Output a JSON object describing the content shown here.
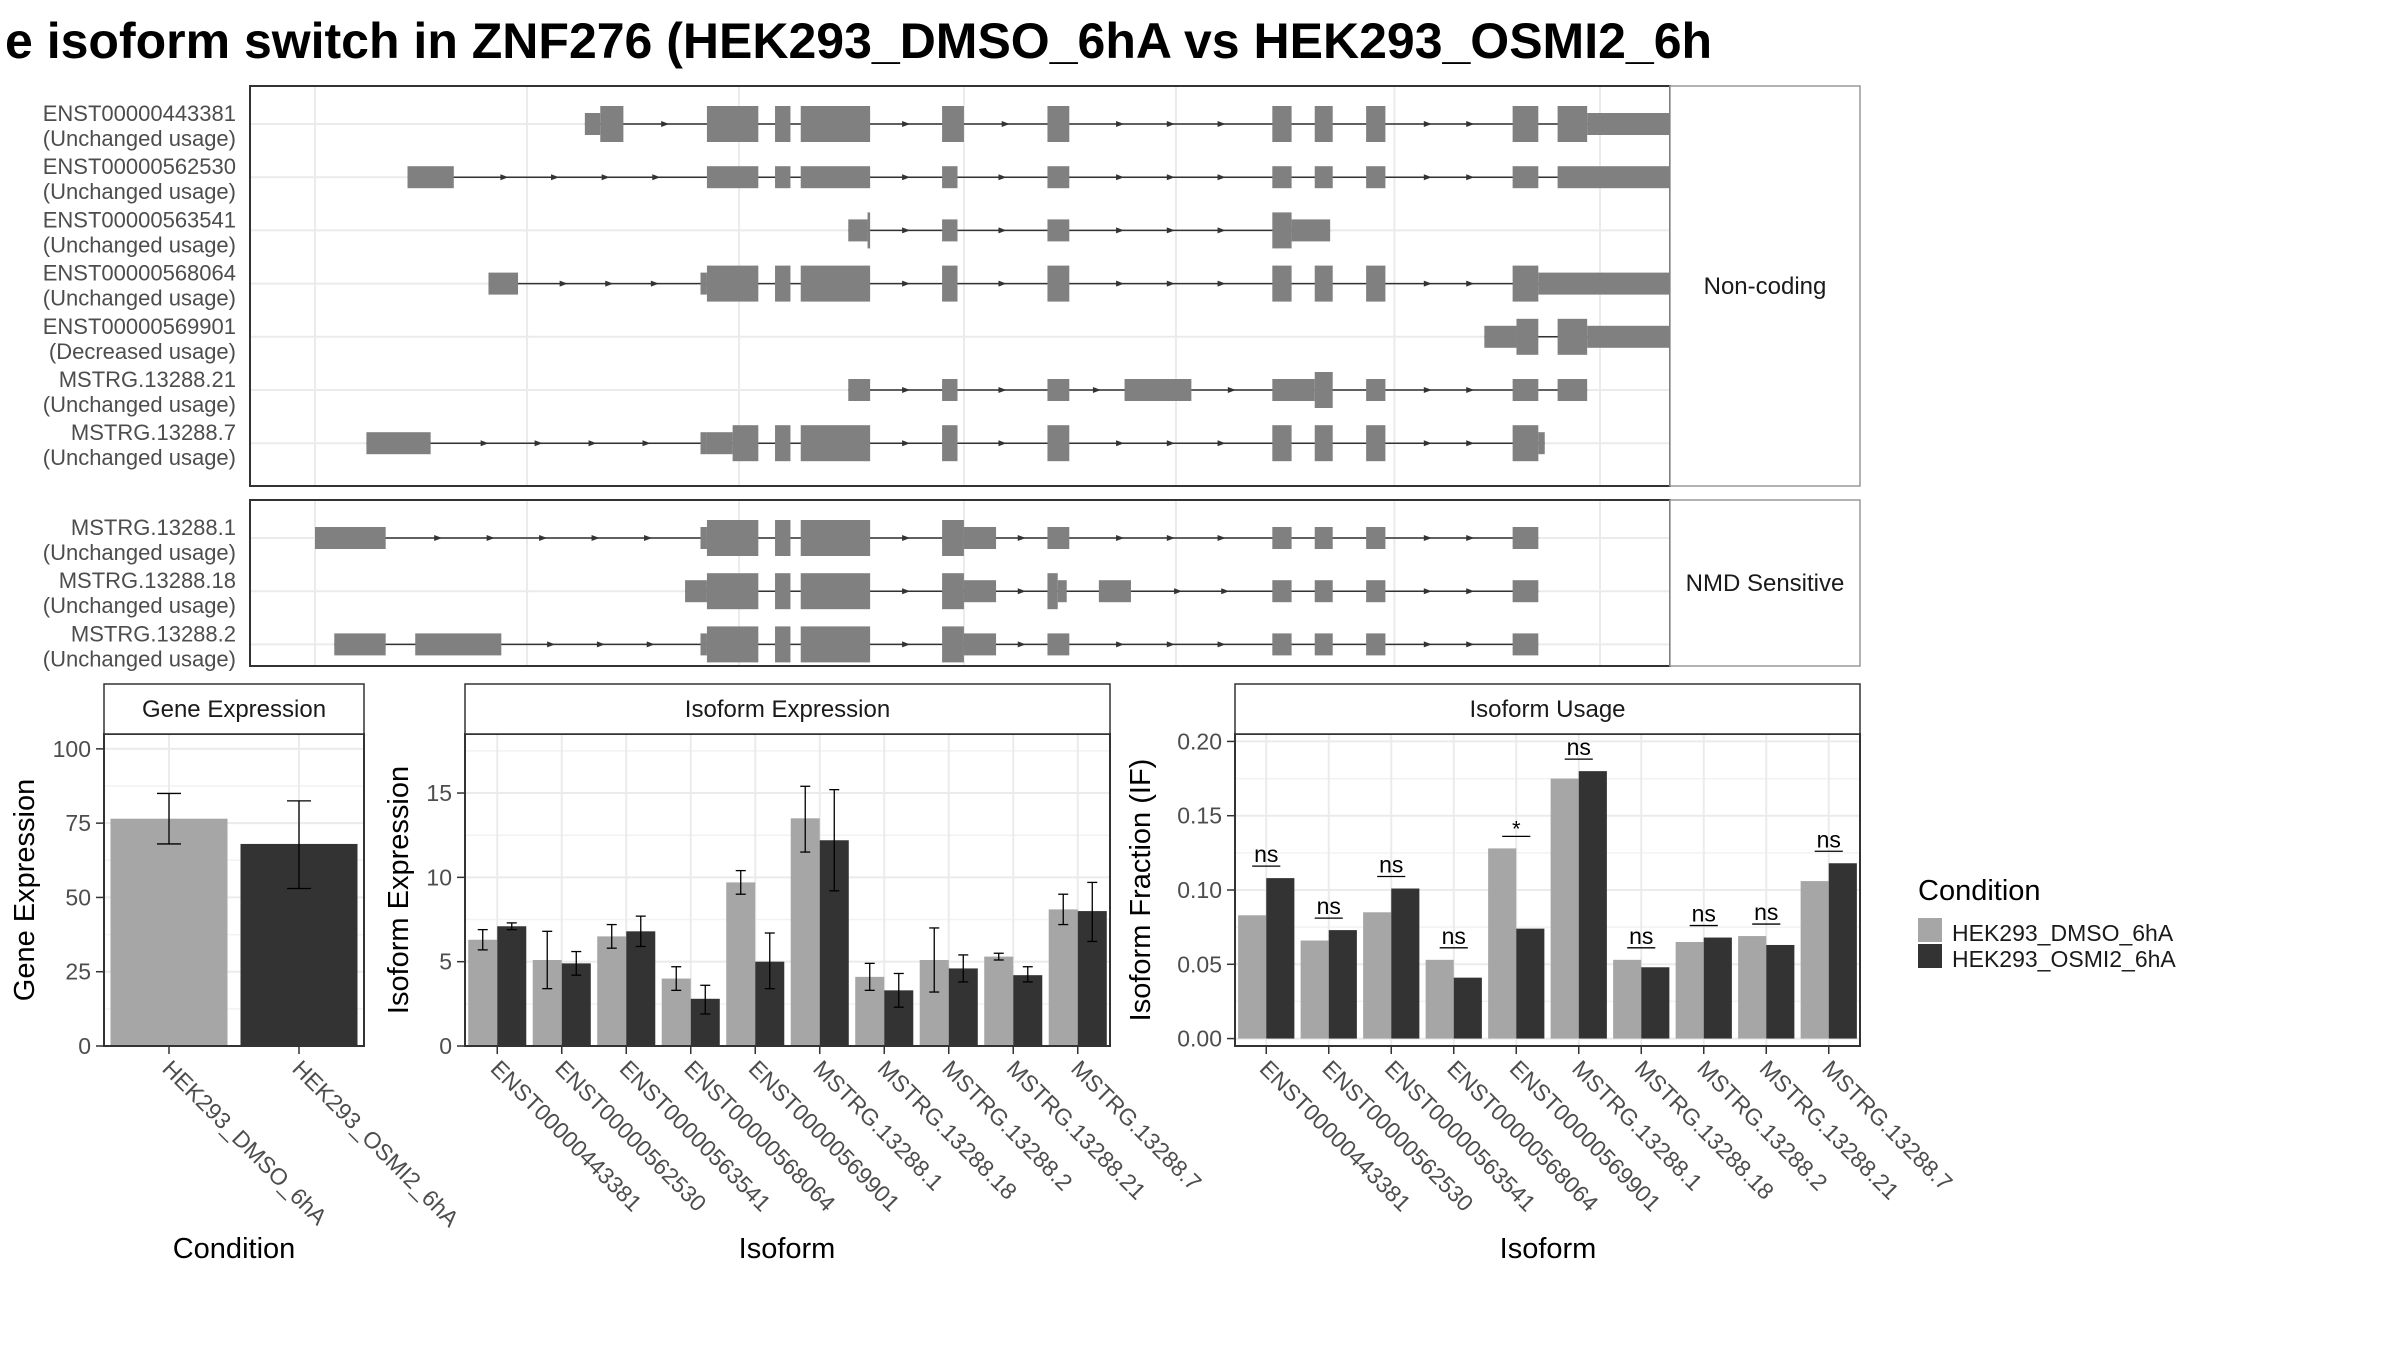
{
  "title": "e isoform switch in ZNF276 (HEK293_DMSO_6hA vs HEK293_OSMI2_6h",
  "colors": {
    "dmso": "#a6a6a6",
    "osmi2": "#333333",
    "exon": "#808080",
    "grid": "#ebebeb",
    "strip_bg": "#ffffff",
    "panel_border": "#333333"
  },
  "structure": {
    "coord_range": [
      0,
      1000
    ],
    "groups": [
      {
        "label": "Non-coding",
        "isoforms": [
          {
            "id": "ENST00000443381",
            "usage": "(Unchanged usage)",
            "exons": [
              [
                210,
                222,
                "u"
              ],
              [
                222,
                240,
                "c"
              ],
              [
                305,
                345,
                "c"
              ],
              [
                358,
                370,
                "c"
              ],
              [
                378,
                432,
                "c"
              ],
              [
                488,
                505,
                "c"
              ],
              [
                570,
                587,
                "c"
              ],
              [
                745,
                760,
                "c"
              ],
              [
                778,
                792,
                "c"
              ],
              [
                818,
                833,
                "c"
              ],
              [
                932,
                952,
                "c"
              ],
              [
                967,
                990,
                "c"
              ],
              [
                990,
                1100,
                "u"
              ]
            ]
          },
          {
            "id": "ENST00000562530",
            "usage": "(Unchanged usage)",
            "exons": [
              [
                72,
                108,
                "u"
              ],
              [
                305,
                345,
                "u"
              ],
              [
                358,
                370,
                "u"
              ],
              [
                378,
                432,
                "u"
              ],
              [
                488,
                500,
                "u"
              ],
              [
                570,
                587,
                "u"
              ],
              [
                745,
                760,
                "u"
              ],
              [
                778,
                792,
                "u"
              ],
              [
                818,
                833,
                "u"
              ],
              [
                932,
                952,
                "u"
              ],
              [
                967,
                1100,
                "u"
              ]
            ]
          },
          {
            "id": "ENST00000563541",
            "usage": "(Unchanged usage)",
            "exons": [
              [
                415,
                430,
                "u"
              ],
              [
                430,
                432,
                "c"
              ],
              [
                488,
                500,
                "u"
              ],
              [
                570,
                587,
                "u"
              ],
              [
                745,
                760,
                "c"
              ],
              [
                760,
                790,
                "u"
              ]
            ]
          },
          {
            "id": "ENST00000568064",
            "usage": "(Unchanged usage)",
            "exons": [
              [
                135,
                158,
                "u"
              ],
              [
                300,
                305,
                "u"
              ],
              [
                305,
                345,
                "c"
              ],
              [
                358,
                370,
                "c"
              ],
              [
                378,
                432,
                "c"
              ],
              [
                488,
                500,
                "c"
              ],
              [
                570,
                587,
                "c"
              ],
              [
                745,
                760,
                "c"
              ],
              [
                778,
                792,
                "c"
              ],
              [
                818,
                833,
                "c"
              ],
              [
                932,
                952,
                "c"
              ],
              [
                952,
                1100,
                "u"
              ]
            ]
          },
          {
            "id": "ENST00000569901",
            "usage": "(Decreased usage)",
            "exons": [
              [
                910,
                935,
                "u"
              ],
              [
                935,
                952,
                "c"
              ],
              [
                967,
                990,
                "c"
              ],
              [
                990,
                1100,
                "u"
              ]
            ]
          },
          {
            "id": "MSTRG.13288.21",
            "usage": "(Unchanged usage)",
            "exons": [
              [
                415,
                432,
                "u"
              ],
              [
                488,
                500,
                "u"
              ],
              [
                570,
                587,
                "u"
              ],
              [
                630,
                682,
                "u"
              ],
              [
                745,
                778,
                "u"
              ],
              [
                778,
                792,
                "c"
              ],
              [
                818,
                833,
                "u"
              ],
              [
                932,
                952,
                "u"
              ],
              [
                967,
                990,
                "u"
              ]
            ]
          },
          {
            "id": "MSTRG.13288.7",
            "usage": "(Unchanged usage)",
            "exons": [
              [
                40,
                90,
                "u"
              ],
              [
                300,
                305,
                "u"
              ],
              [
                305,
                325,
                "u"
              ],
              [
                325,
                345,
                "c"
              ],
              [
                358,
                370,
                "c"
              ],
              [
                378,
                432,
                "c"
              ],
              [
                488,
                500,
                "c"
              ],
              [
                570,
                587,
                "c"
              ],
              [
                745,
                760,
                "c"
              ],
              [
                778,
                792,
                "c"
              ],
              [
                818,
                833,
                "c"
              ],
              [
                932,
                952,
                "c"
              ],
              [
                952,
                957,
                "u"
              ]
            ]
          }
        ]
      },
      {
        "label": "NMD Sensitive",
        "isoforms": [
          {
            "id": "MSTRG.13288.1",
            "usage": "(Unchanged usage)",
            "exons": [
              [
                0,
                55,
                "u"
              ],
              [
                300,
                305,
                "u"
              ],
              [
                305,
                345,
                "c"
              ],
              [
                358,
                370,
                "c"
              ],
              [
                378,
                432,
                "c"
              ],
              [
                488,
                505,
                "c"
              ],
              [
                505,
                530,
                "u"
              ],
              [
                570,
                587,
                "u"
              ],
              [
                745,
                760,
                "u"
              ],
              [
                778,
                792,
                "u"
              ],
              [
                818,
                833,
                "u"
              ],
              [
                932,
                952,
                "u"
              ]
            ]
          },
          {
            "id": "MSTRG.13288.18",
            "usage": "(Unchanged usage)",
            "exons": [
              [
                288,
                305,
                "u"
              ],
              [
                305,
                345,
                "c"
              ],
              [
                358,
                370,
                "c"
              ],
              [
                378,
                432,
                "c"
              ],
              [
                488,
                505,
                "c"
              ],
              [
                505,
                530,
                "u"
              ],
              [
                570,
                578,
                "c"
              ],
              [
                578,
                585,
                "u"
              ],
              [
                610,
                635,
                "u"
              ],
              [
                745,
                760,
                "u"
              ],
              [
                778,
                792,
                "u"
              ],
              [
                818,
                833,
                "u"
              ],
              [
                932,
                952,
                "u"
              ]
            ]
          },
          {
            "id": "MSTRG.13288.2",
            "usage": "(Unchanged usage)",
            "exons": [
              [
                15,
                55,
                "u"
              ],
              [
                78,
                145,
                "u"
              ],
              [
                300,
                305,
                "u"
              ],
              [
                305,
                345,
                "c"
              ],
              [
                358,
                370,
                "c"
              ],
              [
                378,
                432,
                "c"
              ],
              [
                488,
                505,
                "c"
              ],
              [
                505,
                530,
                "u"
              ],
              [
                570,
                587,
                "u"
              ],
              [
                745,
                760,
                "u"
              ],
              [
                778,
                792,
                "u"
              ],
              [
                818,
                833,
                "u"
              ],
              [
                932,
                952,
                "u"
              ]
            ]
          }
        ]
      }
    ]
  },
  "legend": {
    "title": "Condition",
    "items": [
      "HEK293_DMSO_6hA",
      "HEK293_OSMI2_6hA"
    ]
  },
  "chart_data": [
    {
      "type": "bar",
      "title": "Gene Expression",
      "xlabel": "Condition",
      "ylabel": "Gene Expression",
      "ylim": [
        0,
        105
      ],
      "yticks": [
        0,
        25,
        50,
        75,
        100
      ],
      "categories": [
        "HEK293_DMSO_6hA",
        "HEK293_OSMI2_6hA"
      ],
      "values": [
        76.5,
        68
      ],
      "errors": [
        [
          68,
          85
        ],
        [
          53,
          82.5
        ]
      ]
    },
    {
      "type": "bar",
      "title": "Isoform Expression",
      "xlabel": "Isoform",
      "ylabel": "Isoform Expression",
      "ylim": [
        0,
        18.5
      ],
      "yticks": [
        0,
        5,
        10,
        15
      ],
      "categories": [
        "ENST00000443381",
        "ENST00000562530",
        "ENST00000563541",
        "ENST00000568064",
        "ENST00000569901",
        "MSTRG.13288.1",
        "MSTRG.13288.18",
        "MSTRG.13288.2",
        "MSTRG.13288.21",
        "MSTRG.13288.7"
      ],
      "series": [
        {
          "name": "HEK293_DMSO_6hA",
          "values": [
            6.3,
            5.1,
            6.5,
            4.0,
            9.7,
            13.5,
            4.1,
            5.1,
            5.3,
            8.1
          ],
          "errors": [
            [
              5.7,
              6.9
            ],
            [
              3.4,
              6.8
            ],
            [
              5.8,
              7.2
            ],
            [
              3.3,
              4.7
            ],
            [
              9.0,
              10.4
            ],
            [
              11.5,
              15.4
            ],
            [
              3.3,
              4.9
            ],
            [
              3.2,
              7.0
            ],
            [
              5.1,
              5.5
            ],
            [
              7.2,
              9.0
            ]
          ]
        },
        {
          "name": "HEK293_OSMI2_6hA",
          "values": [
            7.1,
            4.9,
            6.8,
            2.8,
            5.0,
            12.2,
            3.3,
            4.6,
            4.2,
            8.0
          ],
          "errors": [
            [
              6.9,
              7.3
            ],
            [
              4.2,
              5.6
            ],
            [
              5.9,
              7.7
            ],
            [
              1.9,
              3.6
            ],
            [
              3.4,
              6.7
            ],
            [
              9.2,
              15.2
            ],
            [
              2.3,
              4.3
            ],
            [
              3.8,
              5.4
            ],
            [
              3.8,
              4.7
            ],
            [
              6.2,
              9.7
            ]
          ]
        }
      ]
    },
    {
      "type": "bar",
      "title": "Isoform Usage",
      "xlabel": "Isoform",
      "ylabel": "Isoform Fraction (IF)",
      "ylim": [
        -0.005,
        0.205
      ],
      "yticks": [
        0,
        0.05,
        0.1,
        0.15,
        0.2
      ],
      "ytick_labels": [
        "0.00",
        "0.05",
        "0.10",
        "0.15",
        "0.20"
      ],
      "categories": [
        "ENST00000443381",
        "ENST00000562530",
        "ENST00000563541",
        "ENST00000568064",
        "ENST00000569901",
        "MSTRG.13288.1",
        "MSTRG.13288.18",
        "MSTRG.13288.2",
        "MSTRG.13288.21",
        "MSTRG.13288.7"
      ],
      "series": [
        {
          "name": "HEK293_DMSO_6hA",
          "values": [
            0.083,
            0.066,
            0.085,
            0.053,
            0.128,
            0.175,
            0.053,
            0.065,
            0.069,
            0.106
          ]
        },
        {
          "name": "HEK293_OSMI2_6hA",
          "values": [
            0.108,
            0.073,
            0.101,
            0.041,
            0.074,
            0.18,
            0.048,
            0.068,
            0.063,
            0.118
          ]
        }
      ],
      "significance": [
        "ns",
        "ns",
        "ns",
        "ns",
        "*",
        "ns",
        "ns",
        "ns",
        "ns",
        "ns"
      ]
    }
  ]
}
